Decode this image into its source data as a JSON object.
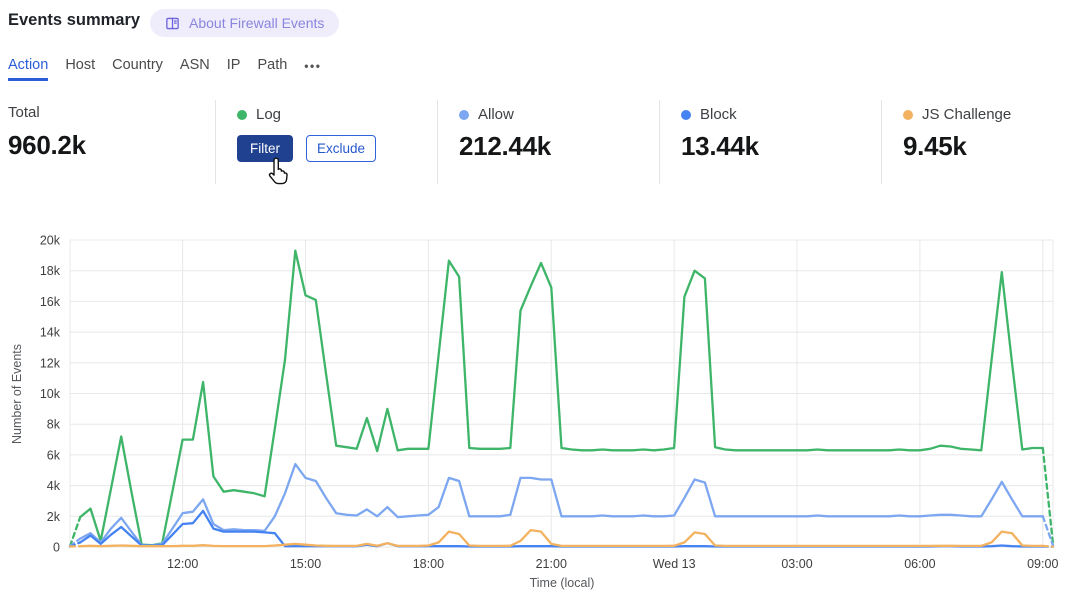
{
  "header": {
    "title": "Events summary",
    "badge_label": "About Firewall Events"
  },
  "tabs": {
    "items": [
      {
        "label": "Action",
        "active": true
      },
      {
        "label": "Host",
        "active": false
      },
      {
        "label": "Country",
        "active": false
      },
      {
        "label": "ASN",
        "active": false
      },
      {
        "label": "IP",
        "active": false
      },
      {
        "label": "Path",
        "active": false
      }
    ],
    "more_label": "•••"
  },
  "stats": {
    "total": {
      "label": "Total",
      "value": "960.2k"
    },
    "cards": [
      {
        "label": "Log",
        "color": "#3eb569",
        "hovered": true,
        "actions": [
          "Filter",
          "Exclude"
        ]
      },
      {
        "label": "Allow",
        "color": "#7da7f0",
        "value": "212.44k"
      },
      {
        "label": "Block",
        "color": "#4583f2",
        "value": "13.44k"
      },
      {
        "label": "JS Challenge",
        "color": "#f2b260",
        "value": "9.45k"
      }
    ]
  },
  "chart_data": {
    "type": "line",
    "title": "",
    "xlabel": "Time (local)",
    "ylabel": "Number of Events",
    "ylim": [
      0,
      20000
    ],
    "grid": true,
    "grid_color": "#e8e8e8",
    "tick_color": "#3f3f3f",
    "axis_color": "#55585c",
    "units": "thousands of events per 15-minute interval",
    "start_time": "09:15",
    "interval_minutes": 15,
    "y_ticks": [
      "0",
      "2k",
      "4k",
      "6k",
      "8k",
      "10k",
      "12k",
      "14k",
      "16k",
      "18k",
      "20k"
    ],
    "x_ticks": [
      {
        "label": "12:00",
        "index": 11
      },
      {
        "label": "15:00",
        "index": 23
      },
      {
        "label": "18:00",
        "index": 35
      },
      {
        "label": "21:00",
        "index": 47
      },
      {
        "label": "Wed 13",
        "index": 59
      },
      {
        "label": "03:00",
        "index": 71
      },
      {
        "label": "06:00",
        "index": 83
      },
      {
        "label": "09:00",
        "index": 95
      }
    ],
    "dashed_ends": true,
    "series": [
      {
        "name": "Log",
        "color": "#3eb569",
        "values_k": [
          0.05,
          1.95,
          2.5,
          0.4,
          3.8,
          7.2,
          3.6,
          0.15,
          0.12,
          0.25,
          3.6,
          7.0,
          7.0,
          10.75,
          4.6,
          3.6,
          3.7,
          3.6,
          3.5,
          3.3,
          7.7,
          12.2,
          19.3,
          16.4,
          16.1,
          11.3,
          6.6,
          6.5,
          6.4,
          8.4,
          6.25,
          9.0,
          6.3,
          6.4,
          6.4,
          6.4,
          12.5,
          18.65,
          17.6,
          6.45,
          6.4,
          6.4,
          6.4,
          6.45,
          15.4,
          17.0,
          18.5,
          16.9,
          6.45,
          6.35,
          6.3,
          6.3,
          6.35,
          6.3,
          6.3,
          6.3,
          6.35,
          6.3,
          6.35,
          6.45,
          16.3,
          18.0,
          17.5,
          6.5,
          6.35,
          6.3,
          6.3,
          6.3,
          6.3,
          6.3,
          6.3,
          6.3,
          6.3,
          6.35,
          6.3,
          6.3,
          6.3,
          6.3,
          6.3,
          6.3,
          6.3,
          6.35,
          6.3,
          6.3,
          6.4,
          6.6,
          6.55,
          6.4,
          6.35,
          6.3,
          12.2,
          17.9,
          12.0,
          6.35,
          6.45,
          6.45,
          0.2
        ]
      },
      {
        "name": "Allow",
        "color": "#7da7f0",
        "values_k": [
          0.05,
          0.55,
          0.9,
          0.3,
          1.2,
          1.9,
          1.0,
          0.12,
          0.1,
          0.2,
          1.2,
          2.2,
          2.3,
          3.1,
          1.5,
          1.1,
          1.15,
          1.1,
          1.1,
          1.05,
          2.0,
          3.5,
          5.4,
          4.5,
          4.3,
          3.2,
          2.2,
          2.1,
          2.05,
          2.45,
          2.0,
          2.6,
          1.95,
          2.0,
          2.05,
          2.1,
          2.6,
          4.5,
          4.3,
          2.0,
          2.0,
          2.0,
          2.0,
          2.1,
          4.5,
          4.5,
          4.4,
          4.4,
          2.0,
          2.0,
          2.0,
          2.0,
          2.05,
          2.0,
          2.0,
          2.0,
          2.05,
          2.0,
          2.0,
          2.05,
          3.2,
          4.4,
          4.2,
          2.0,
          2.0,
          2.0,
          2.0,
          2.0,
          2.0,
          2.0,
          2.0,
          2.0,
          2.0,
          2.05,
          2.0,
          2.0,
          2.0,
          2.0,
          2.0,
          2.0,
          2.0,
          2.05,
          2.0,
          2.0,
          2.05,
          2.1,
          2.1,
          2.05,
          2.0,
          2.0,
          3.1,
          4.25,
          3.1,
          2.0,
          2.0,
          2.0,
          0.1
        ]
      },
      {
        "name": "Block",
        "color": "#4583f2",
        "values_k": [
          0.02,
          0.3,
          0.75,
          0.2,
          0.8,
          1.3,
          0.7,
          0.1,
          0.08,
          0.12,
          0.8,
          1.5,
          1.55,
          2.35,
          1.2,
          1.0,
          1.0,
          1.0,
          1.0,
          0.95,
          0.9,
          0.05,
          0.05,
          0.05,
          0.05,
          0.05,
          0.05,
          0.05,
          0.05,
          0.15,
          0.05,
          0.25,
          0.05,
          0.05,
          0.05,
          0.05,
          0.05,
          0.05,
          0.05,
          0.03,
          0.03,
          0.03,
          0.03,
          0.03,
          0.05,
          0.05,
          0.05,
          0.05,
          0.03,
          0.03,
          0.03,
          0.03,
          0.03,
          0.03,
          0.03,
          0.03,
          0.03,
          0.03,
          0.03,
          0.03,
          0.05,
          0.05,
          0.05,
          0.03,
          0.03,
          0.03,
          0.03,
          0.03,
          0.03,
          0.03,
          0.03,
          0.03,
          0.03,
          0.03,
          0.03,
          0.03,
          0.03,
          0.03,
          0.03,
          0.03,
          0.03,
          0.03,
          0.03,
          0.03,
          0.03,
          0.05,
          0.05,
          0.03,
          0.03,
          0.03,
          0.05,
          0.1,
          0.05,
          0.03,
          0.03,
          0.03,
          0.02
        ]
      },
      {
        "name": "JS Challenge",
        "color": "#f2b260",
        "values_k": [
          0.03,
          0.05,
          0.08,
          0.05,
          0.08,
          0.1,
          0.08,
          0.05,
          0.05,
          0.05,
          0.06,
          0.08,
          0.08,
          0.12,
          0.07,
          0.06,
          0.06,
          0.06,
          0.06,
          0.06,
          0.1,
          0.15,
          0.2,
          0.15,
          0.1,
          0.08,
          0.07,
          0.07,
          0.07,
          0.2,
          0.08,
          0.25,
          0.07,
          0.07,
          0.07,
          0.1,
          0.3,
          1.0,
          0.85,
          0.1,
          0.07,
          0.07,
          0.07,
          0.08,
          0.4,
          1.1,
          1.0,
          0.2,
          0.07,
          0.07,
          0.07,
          0.07,
          0.07,
          0.07,
          0.07,
          0.07,
          0.07,
          0.07,
          0.07,
          0.08,
          0.3,
          0.95,
          0.85,
          0.1,
          0.07,
          0.07,
          0.07,
          0.07,
          0.07,
          0.07,
          0.07,
          0.07,
          0.07,
          0.07,
          0.07,
          0.07,
          0.07,
          0.07,
          0.07,
          0.07,
          0.07,
          0.07,
          0.07,
          0.07,
          0.07,
          0.08,
          0.08,
          0.07,
          0.07,
          0.07,
          0.3,
          1.0,
          0.9,
          0.1,
          0.07,
          0.07,
          0.02
        ]
      }
    ]
  }
}
